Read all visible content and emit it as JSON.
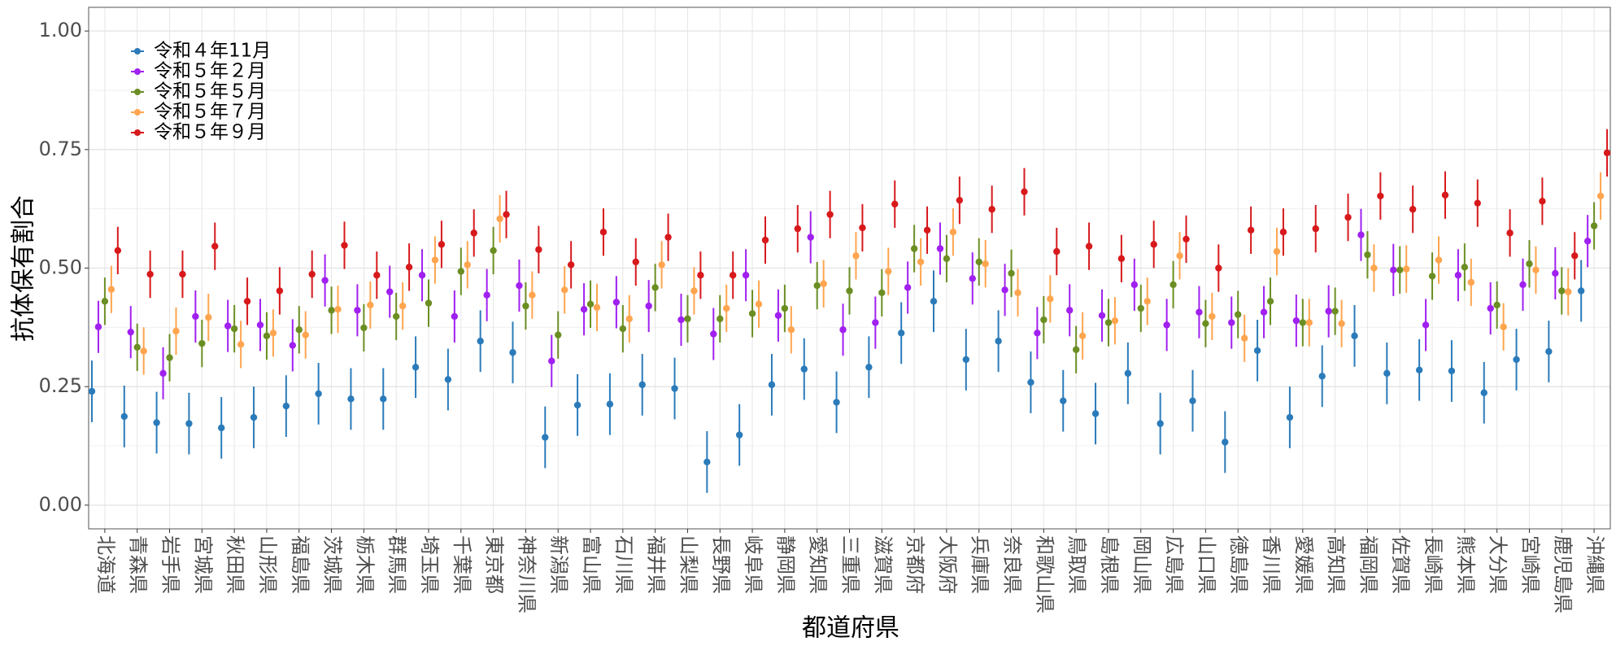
{
  "chart_data": {
    "type": "dot-errorbar",
    "y_label": "抗体保有割合",
    "x_label": "都道府県",
    "categories": [
      "北海道",
      "青森県",
      "岩手県",
      "宮城県",
      "秋田県",
      "山形県",
      "福島県",
      "茨城県",
      "栃木県",
      "群馬県",
      "埼玉県",
      "千葉県",
      "東京都",
      "神奈川県",
      "新潟県",
      "富山県",
      "石川県",
      "福井県",
      "山梨県",
      "長野県",
      "岐阜県",
      "静岡県",
      "愛知県",
      "三重県",
      "滋賀県",
      "京都府",
      "大阪府",
      "兵庫県",
      "奈良県",
      "和歌山県",
      "鳥取県",
      "島根県",
      "岡山県",
      "広島県",
      "山口県",
      "徳島県",
      "香川県",
      "愛媛県",
      "高知県",
      "福岡県",
      "佐賀県",
      "長崎県",
      "熊本県",
      "大分県",
      "宮崎県",
      "鹿児島県",
      "沖縄県"
    ],
    "series": [
      {
        "name": "令和４年11月",
        "color": "#2b7bba",
        "error": 0.065,
        "values": [
          0.24,
          0.187,
          0.174,
          0.172,
          0.163,
          0.185,
          0.209,
          0.235,
          0.224,
          0.224,
          0.291,
          0.265,
          0.346,
          0.322,
          0.143,
          0.211,
          0.213,
          0.254,
          0.246,
          0.091,
          0.148,
          0.254,
          0.287,
          0.217,
          0.291,
          0.363,
          0.43,
          0.307,
          0.346,
          0.259,
          0.22,
          0.193,
          0.278,
          0.172,
          0.22,
          0.133,
          0.326,
          0.185,
          0.272,
          0.357,
          0.278,
          0.285,
          0.283,
          0.237,
          0.307,
          0.324,
          0.452
        ]
      },
      {
        "name": "令和５年２月",
        "color": "#a020f0",
        "error": 0.055,
        "values": [
          0.376,
          0.365,
          0.278,
          0.398,
          0.378,
          0.38,
          0.337,
          0.474,
          0.411,
          0.45,
          0.485,
          0.398,
          0.443,
          0.463,
          0.304,
          0.413,
          0.428,
          0.42,
          0.391,
          0.361,
          0.485,
          0.4,
          0.565,
          0.37,
          0.385,
          0.459,
          0.541,
          0.478,
          0.454,
          0.363,
          0.411,
          0.4,
          0.465,
          0.38,
          0.407,
          0.385,
          0.407,
          0.389,
          0.409,
          0.57,
          0.496,
          0.38,
          0.485,
          0.415,
          0.465,
          0.489,
          0.557
        ]
      },
      {
        "name": "令和５年５月",
        "color": "#6b8e23",
        "error": 0.05,
        "values": [
          0.43,
          0.333,
          0.311,
          0.341,
          0.372,
          0.357,
          0.37,
          0.411,
          0.374,
          0.398,
          0.426,
          0.493,
          0.537,
          0.42,
          0.359,
          0.424,
          0.372,
          0.459,
          0.393,
          0.393,
          0.404,
          0.415,
          0.463,
          0.452,
          0.448,
          0.541,
          0.52,
          0.513,
          0.489,
          0.391,
          0.328,
          0.385,
          0.415,
          0.465,
          0.383,
          0.402,
          0.43,
          0.385,
          0.409,
          0.528,
          0.496,
          0.483,
          0.502,
          0.422,
          0.509,
          0.452,
          0.589
        ]
      },
      {
        "name": "令和５年７月",
        "color": "#ffa54f",
        "error": 0.05,
        "values": [
          0.455,
          0.325,
          0.367,
          0.396,
          0.339,
          0.363,
          0.359,
          0.413,
          0.422,
          0.42,
          0.517,
          0.507,
          0.604,
          0.443,
          0.454,
          0.417,
          0.393,
          0.507,
          0.452,
          0.415,
          0.424,
          0.37,
          0.467,
          0.526,
          0.493,
          0.513,
          0.576,
          0.509,
          0.448,
          0.435,
          0.357,
          0.389,
          0.43,
          0.526,
          0.398,
          0.352,
          0.535,
          0.385,
          0.383,
          0.5,
          0.498,
          0.517,
          0.47,
          0.376,
          0.496,
          0.45,
          0.652
        ]
      },
      {
        "name": "令和５年９月",
        "color": "#d7191c",
        "error": 0.05,
        "values": [
          0.537,
          0.487,
          0.487,
          0.546,
          0.43,
          0.452,
          0.487,
          0.548,
          0.485,
          0.502,
          0.55,
          0.574,
          0.613,
          0.539,
          0.507,
          0.576,
          0.513,
          0.565,
          0.485,
          0.485,
          0.559,
          0.583,
          0.613,
          0.585,
          0.635,
          0.58,
          0.643,
          0.624,
          0.661,
          0.535,
          0.546,
          0.52,
          0.55,
          0.561,
          0.5,
          0.58,
          0.576,
          0.583,
          0.607,
          0.652,
          0.624,
          0.654,
          0.637,
          0.574,
          0.641,
          0.526,
          0.743
        ]
      }
    ],
    "ylim": [
      -0.05,
      1.05
    ],
    "yticks": [
      {
        "value": 0,
        "label": "0.00"
      },
      {
        "value": 0.25,
        "label": "0.25"
      },
      {
        "value": 0.5,
        "label": "0.50"
      },
      {
        "value": 0.75,
        "label": "0.75"
      },
      {
        "value": 1,
        "label": "1.00"
      }
    ],
    "grid": true,
    "legend": "top-left"
  }
}
